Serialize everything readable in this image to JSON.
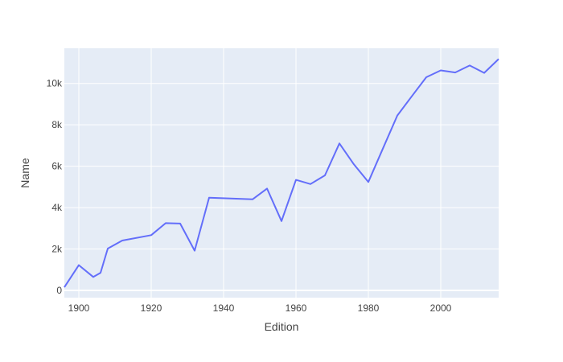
{
  "chart_data": {
    "type": "line",
    "title": "",
    "xlabel": "Edition",
    "ylabel": "Name",
    "xlim": [
      1896,
      2016
    ],
    "ylim": [
      -350,
      11700
    ],
    "x_ticks": [
      1900,
      1920,
      1940,
      1960,
      1980,
      2000
    ],
    "x_tick_labels": [
      "1900",
      "1920",
      "1940",
      "1960",
      "1980",
      "2000"
    ],
    "y_ticks": [
      0,
      2000,
      4000,
      6000,
      8000,
      10000
    ],
    "y_tick_labels": [
      "0",
      "2k",
      "4k",
      "6k",
      "8k",
      "10k"
    ],
    "grid": true,
    "colors": {
      "line": "#636efa",
      "plot_bg": "#e5ecf6",
      "grid": "#ffffff",
      "page_bg": "#ffffff"
    },
    "series": [
      {
        "x": [
          1896,
          1900,
          1904,
          1906,
          1908,
          1912,
          1920,
          1924,
          1928,
          1932,
          1936,
          1948,
          1952,
          1956,
          1960,
          1964,
          1968,
          1972,
          1976,
          1980,
          1984,
          1988,
          1992,
          1996,
          2000,
          2004,
          2008,
          2012,
          2016
        ],
        "y": [
          150,
          1220,
          650,
          850,
          2020,
          2410,
          2670,
          3250,
          3230,
          1920,
          4480,
          4400,
          4920,
          3350,
          5340,
          5140,
          5560,
          7100,
          6090,
          5240,
          6850,
          8450,
          9380,
          10300,
          10630,
          10530,
          10870,
          10510,
          11180
        ]
      }
    ]
  }
}
